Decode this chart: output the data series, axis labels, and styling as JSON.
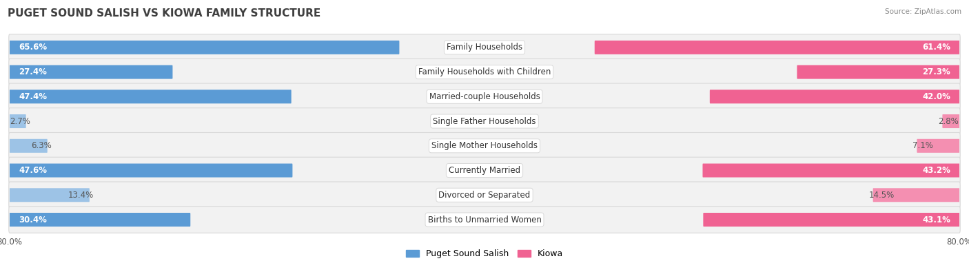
{
  "title": "PUGET SOUND SALISH VS KIOWA FAMILY STRUCTURE",
  "source": "Source: ZipAtlas.com",
  "categories": [
    "Family Households",
    "Family Households with Children",
    "Married-couple Households",
    "Single Father Households",
    "Single Mother Households",
    "Currently Married",
    "Divorced or Separated",
    "Births to Unmarried Women"
  ],
  "salish_values": [
    65.6,
    27.4,
    47.4,
    2.7,
    6.3,
    47.6,
    13.4,
    30.4
  ],
  "kiowa_values": [
    61.4,
    27.3,
    42.0,
    2.8,
    7.1,
    43.2,
    14.5,
    43.1
  ],
  "max_val": 80.0,
  "salish_color_strong": "#5b9bd5",
  "salish_color_light": "#9dc3e6",
  "kiowa_color_strong": "#f06292",
  "kiowa_color_light": "#f48fb1",
  "strong_threshold": 15.0,
  "bg_row_color": "#f2f2f2",
  "bg_alt_color": "#ffffff",
  "row_border_color": "#d9d9d9",
  "title_fontsize": 11,
  "label_fontsize": 8.5,
  "val_fontsize": 8.5,
  "axis_fontsize": 8.5,
  "legend_fontsize": 9
}
